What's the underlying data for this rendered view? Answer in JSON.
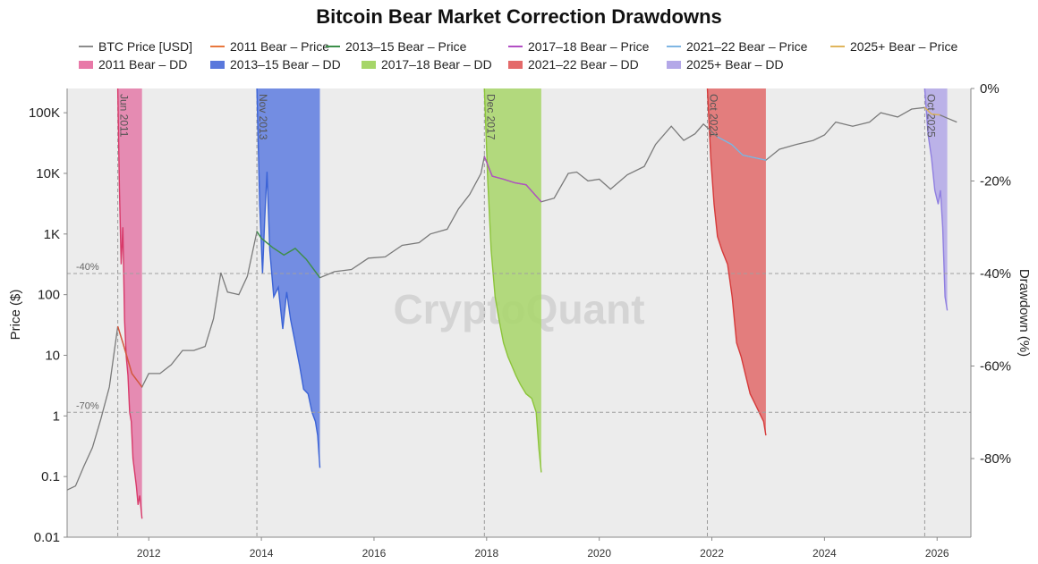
{
  "chart_data": {
    "type": "line",
    "title": "Bitcoin Bear Market Correction Drawdowns",
    "ylabel": "Price ($)",
    "y2label": "Drawdown (%)",
    "xlabel": "",
    "x_ticks": [
      "2012",
      "2014",
      "2016",
      "2018",
      "2020",
      "2022",
      "2024",
      "2026"
    ],
    "xlim": [
      2010.55,
      2026.6
    ],
    "y_ticks": [
      "0.01",
      "0.1",
      "1",
      "10",
      "100",
      "1K",
      "10K",
      "100K"
    ],
    "ylim_log10": [
      -2,
      5.4
    ],
    "y2_ticks": [
      "0%",
      "-20%",
      "-40%",
      "-60%",
      "-80%"
    ],
    "y2lim": [
      -97,
      0
    ],
    "reference_lines": [
      {
        "label": "-40%",
        "value": -40
      },
      {
        "label": "-70%",
        "value": -70
      }
    ],
    "legend": [
      {
        "label": "BTC Price [USD]",
        "color": "#8c8c8c",
        "kind": "line"
      },
      {
        "label": "2011 Bear – Price",
        "color": "#e8773d",
        "kind": "line"
      },
      {
        "label": "2013–15 Bear – Price",
        "color": "#3c8f4a",
        "kind": "line"
      },
      {
        "label": "2017–18 Bear – Price",
        "color": "#b24fc4",
        "kind": "line"
      },
      {
        "label": "2021–22 Bear – Price",
        "color": "#7fb6e3",
        "kind": "line"
      },
      {
        "label": "2025+ Bear – Price",
        "color": "#e0b55c",
        "kind": "line"
      },
      {
        "label": "2011 Bear – DD",
        "color": "#e879a8",
        "kind": "box"
      },
      {
        "label": "2013–15 Bear – DD",
        "color": "#5a78dc",
        "kind": "box"
      },
      {
        "label": "2017–18 Bear – DD",
        "color": "#a6d669",
        "kind": "box"
      },
      {
        "label": "2021–22 Bear – DD",
        "color": "#e46a6a",
        "kind": "box"
      },
      {
        "label": "2025+ Bear – DD",
        "color": "#b4a8e8",
        "kind": "box"
      }
    ],
    "bear_markets": [
      {
        "name": "2011 Bear",
        "label": "Jun 2011",
        "start": 2011.45,
        "end": 2011.88,
        "fill": "#e47aa8",
        "line": "#d83a6a",
        "price_color": "#d9553a",
        "dd": [
          [
            2011.45,
            0
          ],
          [
            2011.48,
            -22
          ],
          [
            2011.51,
            -38
          ],
          [
            2011.54,
            -30
          ],
          [
            2011.57,
            -50
          ],
          [
            2011.6,
            -58
          ],
          [
            2011.63,
            -62
          ],
          [
            2011.66,
            -70
          ],
          [
            2011.69,
            -72
          ],
          [
            2011.72,
            -80
          ],
          [
            2011.75,
            -83
          ],
          [
            2011.78,
            -86
          ],
          [
            2011.81,
            -90
          ],
          [
            2011.84,
            -88
          ],
          [
            2011.88,
            -93
          ]
        ]
      },
      {
        "name": "2013–15 Bear",
        "label": "Nov 2013",
        "start": 2013.92,
        "end": 2015.04,
        "fill": "#5e7de0",
        "line": "#3b63d6",
        "price_color": "#3c8f4a",
        "dd": [
          [
            2013.92,
            0
          ],
          [
            2013.97,
            -25
          ],
          [
            2014.02,
            -40
          ],
          [
            2014.06,
            -28
          ],
          [
            2014.1,
            -18
          ],
          [
            2014.15,
            -35
          ],
          [
            2014.22,
            -45
          ],
          [
            2014.3,
            -43
          ],
          [
            2014.38,
            -52
          ],
          [
            2014.45,
            -44
          ],
          [
            2014.52,
            -50
          ],
          [
            2014.6,
            -55
          ],
          [
            2014.68,
            -60
          ],
          [
            2014.75,
            -65
          ],
          [
            2014.83,
            -66
          ],
          [
            2014.9,
            -70
          ],
          [
            2014.96,
            -72
          ],
          [
            2015.0,
            -75
          ],
          [
            2015.04,
            -82
          ]
        ]
      },
      {
        "name": "2017–18 Bear",
        "label": "Dec 2017",
        "start": 2017.96,
        "end": 2018.97,
        "fill": "#a8d66a",
        "line": "#8cc43a",
        "price_color": "#b24fc4",
        "dd": [
          [
            2017.96,
            0
          ],
          [
            2018.02,
            -20
          ],
          [
            2018.08,
            -35
          ],
          [
            2018.15,
            -45
          ],
          [
            2018.22,
            -50
          ],
          [
            2018.3,
            -55
          ],
          [
            2018.38,
            -58
          ],
          [
            2018.45,
            -60
          ],
          [
            2018.52,
            -62
          ],
          [
            2018.6,
            -64
          ],
          [
            2018.7,
            -66
          ],
          [
            2018.8,
            -67
          ],
          [
            2018.88,
            -70
          ],
          [
            2018.93,
            -78
          ],
          [
            2018.97,
            -83
          ]
        ]
      },
      {
        "name": "2021–22 Bear",
        "label": "Oct 2021",
        "start": 2021.92,
        "end": 2022.96,
        "fill": "#e26a6a",
        "line": "#d63a3a",
        "price_color": "#7fb6e3",
        "dd": [
          [
            2021.92,
            0
          ],
          [
            2021.98,
            -15
          ],
          [
            2022.04,
            -25
          ],
          [
            2022.1,
            -32
          ],
          [
            2022.18,
            -35
          ],
          [
            2022.28,
            -38
          ],
          [
            2022.36,
            -45
          ],
          [
            2022.44,
            -55
          ],
          [
            2022.52,
            -58
          ],
          [
            2022.6,
            -62
          ],
          [
            2022.68,
            -66
          ],
          [
            2022.76,
            -68
          ],
          [
            2022.84,
            -70
          ],
          [
            2022.92,
            -72
          ],
          [
            2022.96,
            -75
          ]
        ]
      },
      {
        "name": "2025+ Bear",
        "label": "Oct 2025",
        "start": 2025.78,
        "end": 2026.18,
        "fill": "#b3a8e8",
        "line": "#8f7fe0",
        "price_color": "#e0b55c",
        "dd": [
          [
            2025.78,
            0
          ],
          [
            2025.84,
            -10
          ],
          [
            2025.9,
            -15
          ],
          [
            2025.96,
            -22
          ],
          [
            2026.02,
            -25
          ],
          [
            2026.06,
            -22
          ],
          [
            2026.1,
            -30
          ],
          [
            2026.14,
            -45
          ],
          [
            2026.18,
            -48
          ]
        ]
      }
    ],
    "btc_price": [
      [
        2010.55,
        0.06
      ],
      [
        2010.7,
        0.07
      ],
      [
        2010.85,
        0.15
      ],
      [
        2011.0,
        0.3
      ],
      [
        2011.15,
        0.9
      ],
      [
        2011.3,
        3
      ],
      [
        2011.45,
        30
      ],
      [
        2011.55,
        15
      ],
      [
        2011.7,
        5
      ],
      [
        2011.88,
        3
      ],
      [
        2012.0,
        5
      ],
      [
        2012.2,
        5
      ],
      [
        2012.4,
        7
      ],
      [
        2012.6,
        12
      ],
      [
        2012.8,
        12
      ],
      [
        2013.0,
        14
      ],
      [
        2013.15,
        40
      ],
      [
        2013.28,
        230
      ],
      [
        2013.4,
        110
      ],
      [
        2013.6,
        100
      ],
      [
        2013.75,
        200
      ],
      [
        2013.92,
        1100
      ],
      [
        2014.0,
        850
      ],
      [
        2014.2,
        600
      ],
      [
        2014.4,
        450
      ],
      [
        2014.6,
        580
      ],
      [
        2014.8,
        380
      ],
      [
        2015.04,
        190
      ],
      [
        2015.3,
        240
      ],
      [
        2015.6,
        260
      ],
      [
        2015.9,
        400
      ],
      [
        2016.2,
        420
      ],
      [
        2016.5,
        650
      ],
      [
        2016.8,
        720
      ],
      [
        2017.0,
        1000
      ],
      [
        2017.3,
        1200
      ],
      [
        2017.5,
        2600
      ],
      [
        2017.7,
        4500
      ],
      [
        2017.9,
        10000
      ],
      [
        2017.96,
        19000
      ],
      [
        2018.1,
        9000
      ],
      [
        2018.3,
        8000
      ],
      [
        2018.5,
        7000
      ],
      [
        2018.7,
        6500
      ],
      [
        2018.97,
        3400
      ],
      [
        2019.2,
        3900
      ],
      [
        2019.45,
        10000
      ],
      [
        2019.6,
        10500
      ],
      [
        2019.8,
        7500
      ],
      [
        2020.0,
        8000
      ],
      [
        2020.2,
        5500
      ],
      [
        2020.5,
        9500
      ],
      [
        2020.8,
        13000
      ],
      [
        2021.0,
        30000
      ],
      [
        2021.28,
        60000
      ],
      [
        2021.5,
        35000
      ],
      [
        2021.7,
        45000
      ],
      [
        2021.85,
        65000
      ],
      [
        2022.1,
        40000
      ],
      [
        2022.35,
        30000
      ],
      [
        2022.55,
        20000
      ],
      [
        2022.96,
        16500
      ],
      [
        2023.2,
        25000
      ],
      [
        2023.5,
        30000
      ],
      [
        2023.8,
        35000
      ],
      [
        2024.0,
        43000
      ],
      [
        2024.2,
        70000
      ],
      [
        2024.5,
        60000
      ],
      [
        2024.8,
        70000
      ],
      [
        2025.0,
        100000
      ],
      [
        2025.3,
        85000
      ],
      [
        2025.55,
        115000
      ],
      [
        2025.78,
        122000
      ],
      [
        2025.9,
        95000
      ],
      [
        2026.05,
        92000
      ],
      [
        2026.2,
        80000
      ],
      [
        2026.35,
        70000
      ]
    ],
    "watermark": "CryptoQuant"
  }
}
